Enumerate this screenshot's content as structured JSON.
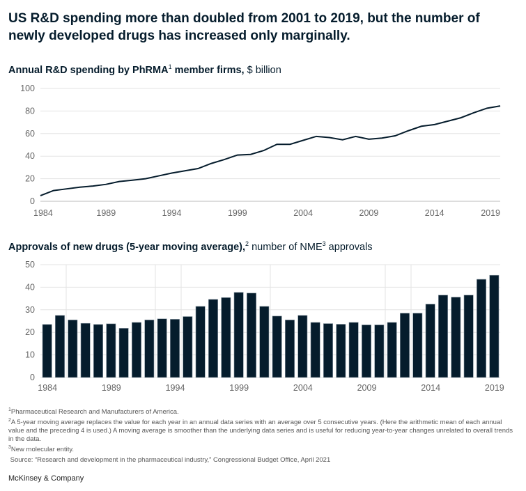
{
  "title": "US R&D spending more than doubled from 2001 to 2019, but the number of newly developed drugs has increased only marginally.",
  "chart_data": [
    {
      "type": "line",
      "title_bold": "Annual R&D spending by PhRMA",
      "title_sup": "1",
      "title_bold2": " member firms,",
      "title_rest": " $ billion",
      "x": [
        1984,
        1985,
        1986,
        1987,
        1988,
        1989,
        1990,
        1991,
        1992,
        1993,
        1994,
        1995,
        1996,
        1997,
        1998,
        1999,
        2000,
        2001,
        2002,
        2003,
        2004,
        2005,
        2006,
        2007,
        2008,
        2009,
        2010,
        2011,
        2012,
        2013,
        2014,
        2015,
        2016,
        2017,
        2018,
        2019
      ],
      "values": [
        5,
        9.5,
        11,
        12.5,
        13.5,
        15,
        17.5,
        18.7,
        20,
        22.5,
        25,
        27,
        29,
        33.5,
        37,
        41,
        41.5,
        45,
        50.5,
        50.5,
        54,
        57.5,
        56.5,
        54.5,
        57.5,
        55,
        56,
        58,
        62.5,
        66.5,
        68,
        71,
        74,
        78.5,
        82.5,
        84.5
      ],
      "ylim": [
        0,
        100
      ],
      "yticks": [
        "0",
        "20",
        "40",
        "60",
        "80",
        "100"
      ],
      "xticks": [
        "1984",
        "1989",
        "1994",
        "1999",
        "2004",
        "2009",
        "2014",
        "2019"
      ],
      "color": "#051c2c"
    },
    {
      "type": "bar",
      "title_bold": "Approvals of new drugs (5-year moving average),",
      "title_sup": "2",
      "title_rest": " number of NME",
      "title_sup2": "3",
      "title_rest2": " approvals",
      "x": [
        1984,
        1985,
        1986,
        1987,
        1988,
        1989,
        1990,
        1991,
        1992,
        1993,
        1994,
        1995,
        1996,
        1997,
        1998,
        1999,
        2000,
        2001,
        2002,
        2003,
        2004,
        2005,
        2006,
        2007,
        2008,
        2009,
        2010,
        2011,
        2012,
        2013,
        2014,
        2015,
        2016,
        2017,
        2018,
        2019
      ],
      "values": [
        23.5,
        27.5,
        25.5,
        24,
        23.5,
        23.8,
        21.8,
        24.4,
        25.5,
        26,
        25.8,
        27,
        31.5,
        34.6,
        35.4,
        37.7,
        37.4,
        31.5,
        27.2,
        25.5,
        27.5,
        24.4,
        23.9,
        23.6,
        24.4,
        23.3,
        23.3,
        24.4,
        28.5,
        28.5,
        32.5,
        36.5,
        35.6,
        36.5,
        43.5,
        45.3
      ],
      "ylim": [
        0,
        50
      ],
      "yticks": [
        "0",
        "10",
        "20",
        "30",
        "40",
        "50"
      ],
      "xticks": [
        "1984",
        "1989",
        "1994",
        "1999",
        "2004",
        "2009",
        "2014",
        "2019"
      ],
      "color": "#051c2c"
    }
  ],
  "notes": [
    {
      "sup": "1",
      "text": "Pharmaceutical Research and Manufacturers of America."
    },
    {
      "sup": "2",
      "text": "A 5-year moving average replaces the value for each year in an annual data series with an average over 5 consecutive years. (Here the arithmetic mean of each annual value and the preceding 4 is used.) A moving average is smoother than the underlying data series and is useful for reducing year-to-year changes unrelated to overall trends in the data."
    },
    {
      "sup": "3",
      "text": "New molecular entity."
    },
    {
      "sup": "",
      "text": "Source: “Research and development in the pharmaceutical industry,” Congressional Budget Office, April 2021"
    }
  ],
  "brand": "McKinsey & Company"
}
